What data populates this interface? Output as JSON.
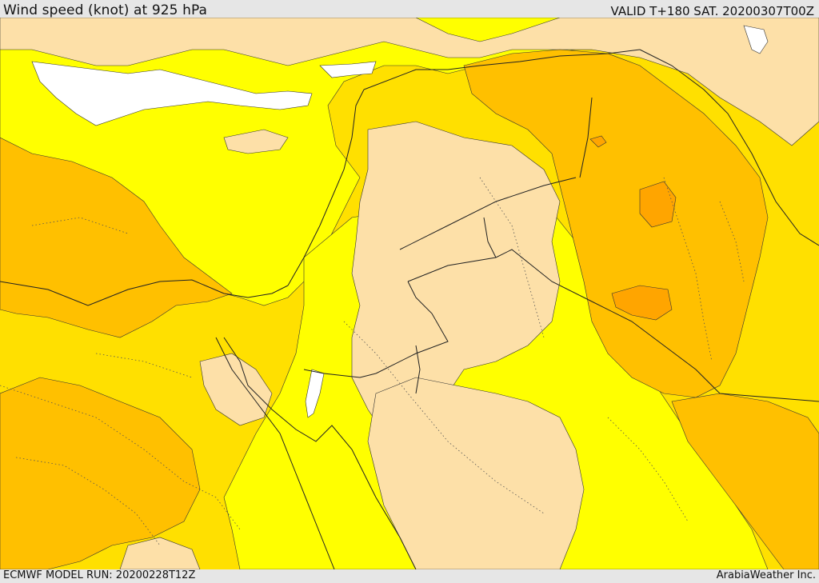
{
  "header": {
    "title": "Wind speed (knot) at 925 hPa",
    "valid": "VALID T+180 SAT. 20200307T00Z"
  },
  "footer": {
    "model_run": "ECMWF MODEL RUN: 20200228T12Z",
    "credit": "ArabiaWeather Inc."
  },
  "map": {
    "variable": "wind speed",
    "units": "knot",
    "level": "925 hPa",
    "colors": {
      "no_fill_sea": "#ffffff",
      "calm": "#fde0a8",
      "light": "#ffff00",
      "moderate": "#ffe000",
      "fresh": "#ffc000",
      "strong": "#ffa500",
      "boundary": "#222222",
      "contour": "#333333"
    }
  }
}
